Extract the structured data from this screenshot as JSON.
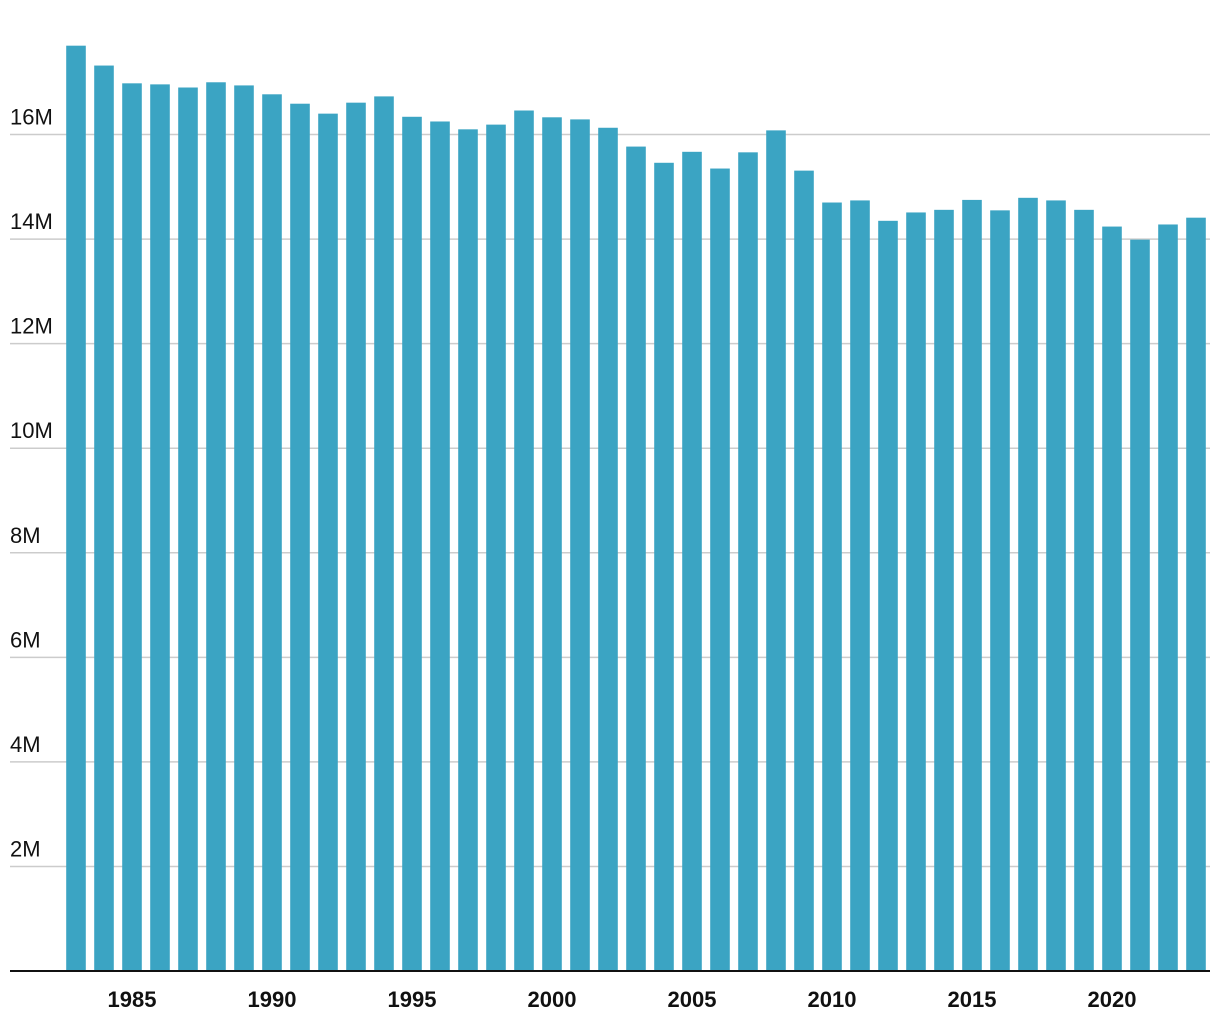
{
  "chart_data": {
    "type": "bar",
    "x": [
      1983,
      1984,
      1985,
      1986,
      1987,
      1988,
      1989,
      1990,
      1991,
      1992,
      1993,
      1994,
      1995,
      1996,
      1997,
      1998,
      1999,
      2000,
      2001,
      2002,
      2003,
      2004,
      2005,
      2006,
      2007,
      2008,
      2009,
      2010,
      2011,
      2012,
      2013,
      2014,
      2015,
      2016,
      2017,
      2018,
      2019,
      2020,
      2021,
      2022,
      2023
    ],
    "values": [
      17700000,
      17320000,
      16980000,
      16960000,
      16900000,
      17000000,
      16940000,
      16770000,
      16590000,
      16400000,
      16610000,
      16730000,
      16340000,
      16250000,
      16100000,
      16190000,
      16460000,
      16330000,
      16290000,
      16130000,
      15770000,
      15460000,
      15670000,
      15350000,
      15660000,
      16080000,
      15310000,
      14700000,
      14740000,
      14350000,
      14510000,
      14560000,
      14750000,
      14550000,
      14790000,
      14740000,
      14560000,
      14240000,
      13990000,
      14280000,
      14410000
    ],
    "color": "#3ba4c3",
    "xlim": [
      1982.5,
      2023.5
    ],
    "xticks": [
      1985,
      1990,
      1995,
      2000,
      2005,
      2010,
      2015,
      2020
    ],
    "ylim": [
      0,
      18000000
    ],
    "yticks": [
      {
        "value": 2000000,
        "label": "2M"
      },
      {
        "value": 4000000,
        "label": "4M"
      },
      {
        "value": 6000000,
        "label": "6M"
      },
      {
        "value": 8000000,
        "label": "8M"
      },
      {
        "value": 10000000,
        "label": "10M"
      },
      {
        "value": 12000000,
        "label": "12M"
      },
      {
        "value": 14000000,
        "label": "14M"
      },
      {
        "value": 16000000,
        "label": "16M"
      }
    ],
    "grid": true
  }
}
